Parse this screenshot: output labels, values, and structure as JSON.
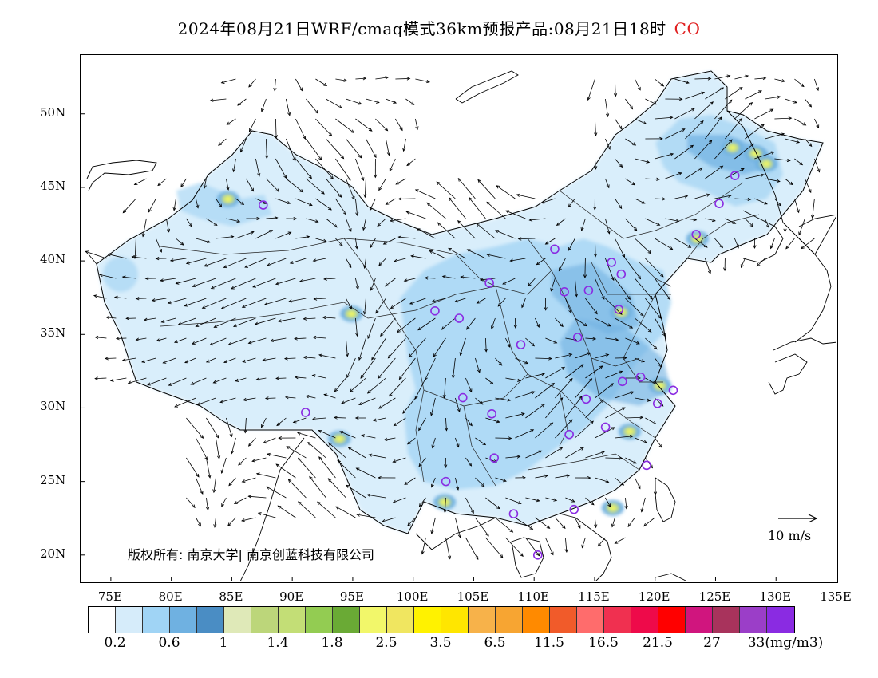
{
  "title": {
    "main": "2024年08月21日WRF/cmaq模式36km预报产品:08月21日18时",
    "species": "CO"
  },
  "axes": {
    "lat_labels": [
      "50N",
      "45N",
      "40N",
      "35N",
      "30N",
      "25N",
      "20N"
    ],
    "lon_labels": [
      "75E",
      "80E",
      "85E",
      "90E",
      "95E",
      "100E",
      "105E",
      "110E",
      "115E",
      "120E",
      "125E",
      "130E",
      "135E"
    ]
  },
  "copyright": "版权所有: 南京大学| 南京创蓝科技有限公司",
  "wind_reference": "10 m/s",
  "legend": {
    "colors": [
      "#ffffff",
      "#d6ecfa",
      "#a0d4f5",
      "#6fb1e1",
      "#4a8dc4",
      "#dfe9b8",
      "#bcd67a",
      "#c3de76",
      "#93cc52",
      "#6aaa35",
      "#f2f76a",
      "#f0e660",
      "#fff200",
      "#ffe600",
      "#f7b24a",
      "#f7a532",
      "#ff8a00",
      "#f15b2a",
      "#ff6c6c",
      "#f03050",
      "#ee0a4a",
      "#ff0000",
      "#d0157e",
      "#a8335c",
      "#9b3ec8",
      "#8a2be2"
    ],
    "labels": [
      "0.2",
      "0.6",
      "1",
      "1.4",
      "1.8",
      "2.5",
      "3.5",
      "6.5",
      "11.5",
      "16.5",
      "21.5",
      "27",
      "33(mg/m3)"
    ]
  },
  "map_data": {
    "stations_lonlat": [
      [
        87.6,
        43.8
      ],
      [
        91.1,
        29.7
      ],
      [
        101.8,
        36.6
      ],
      [
        103.8,
        36.1
      ],
      [
        106.3,
        38.5
      ],
      [
        111.7,
        40.8
      ],
      [
        116.4,
        39.9
      ],
      [
        117.2,
        39.1
      ],
      [
        112.5,
        37.9
      ],
      [
        114.5,
        38.0
      ],
      [
        117.0,
        36.7
      ],
      [
        113.6,
        34.8
      ],
      [
        108.9,
        34.3
      ],
      [
        104.1,
        30.7
      ],
      [
        106.5,
        29.6
      ],
      [
        102.7,
        25.0
      ],
      [
        106.7,
        26.6
      ],
      [
        108.3,
        22.8
      ],
      [
        113.3,
        23.1
      ],
      [
        110.3,
        20.0
      ],
      [
        112.9,
        28.2
      ],
      [
        115.9,
        28.7
      ],
      [
        114.3,
        30.6
      ],
      [
        117.3,
        31.8
      ],
      [
        118.8,
        32.1
      ],
      [
        120.2,
        30.3
      ],
      [
        121.5,
        31.2
      ],
      [
        119.3,
        26.1
      ],
      [
        123.4,
        41.8
      ],
      [
        125.3,
        43.9
      ],
      [
        126.6,
        45.8
      ]
    ],
    "hotspots_lonlat": [
      [
        84.7,
        44.2
      ],
      [
        120.4,
        31.5
      ],
      [
        117.9,
        28.4
      ],
      [
        116.5,
        23.2
      ],
      [
        129.2,
        46.6
      ],
      [
        128.3,
        47.3
      ],
      [
        123.5,
        41.5
      ],
      [
        94.9,
        36.4
      ],
      [
        102.6,
        23.6
      ],
      [
        126.4,
        47.7
      ],
      [
        117.2,
        36.5
      ],
      [
        93.9,
        27.9
      ]
    ]
  }
}
